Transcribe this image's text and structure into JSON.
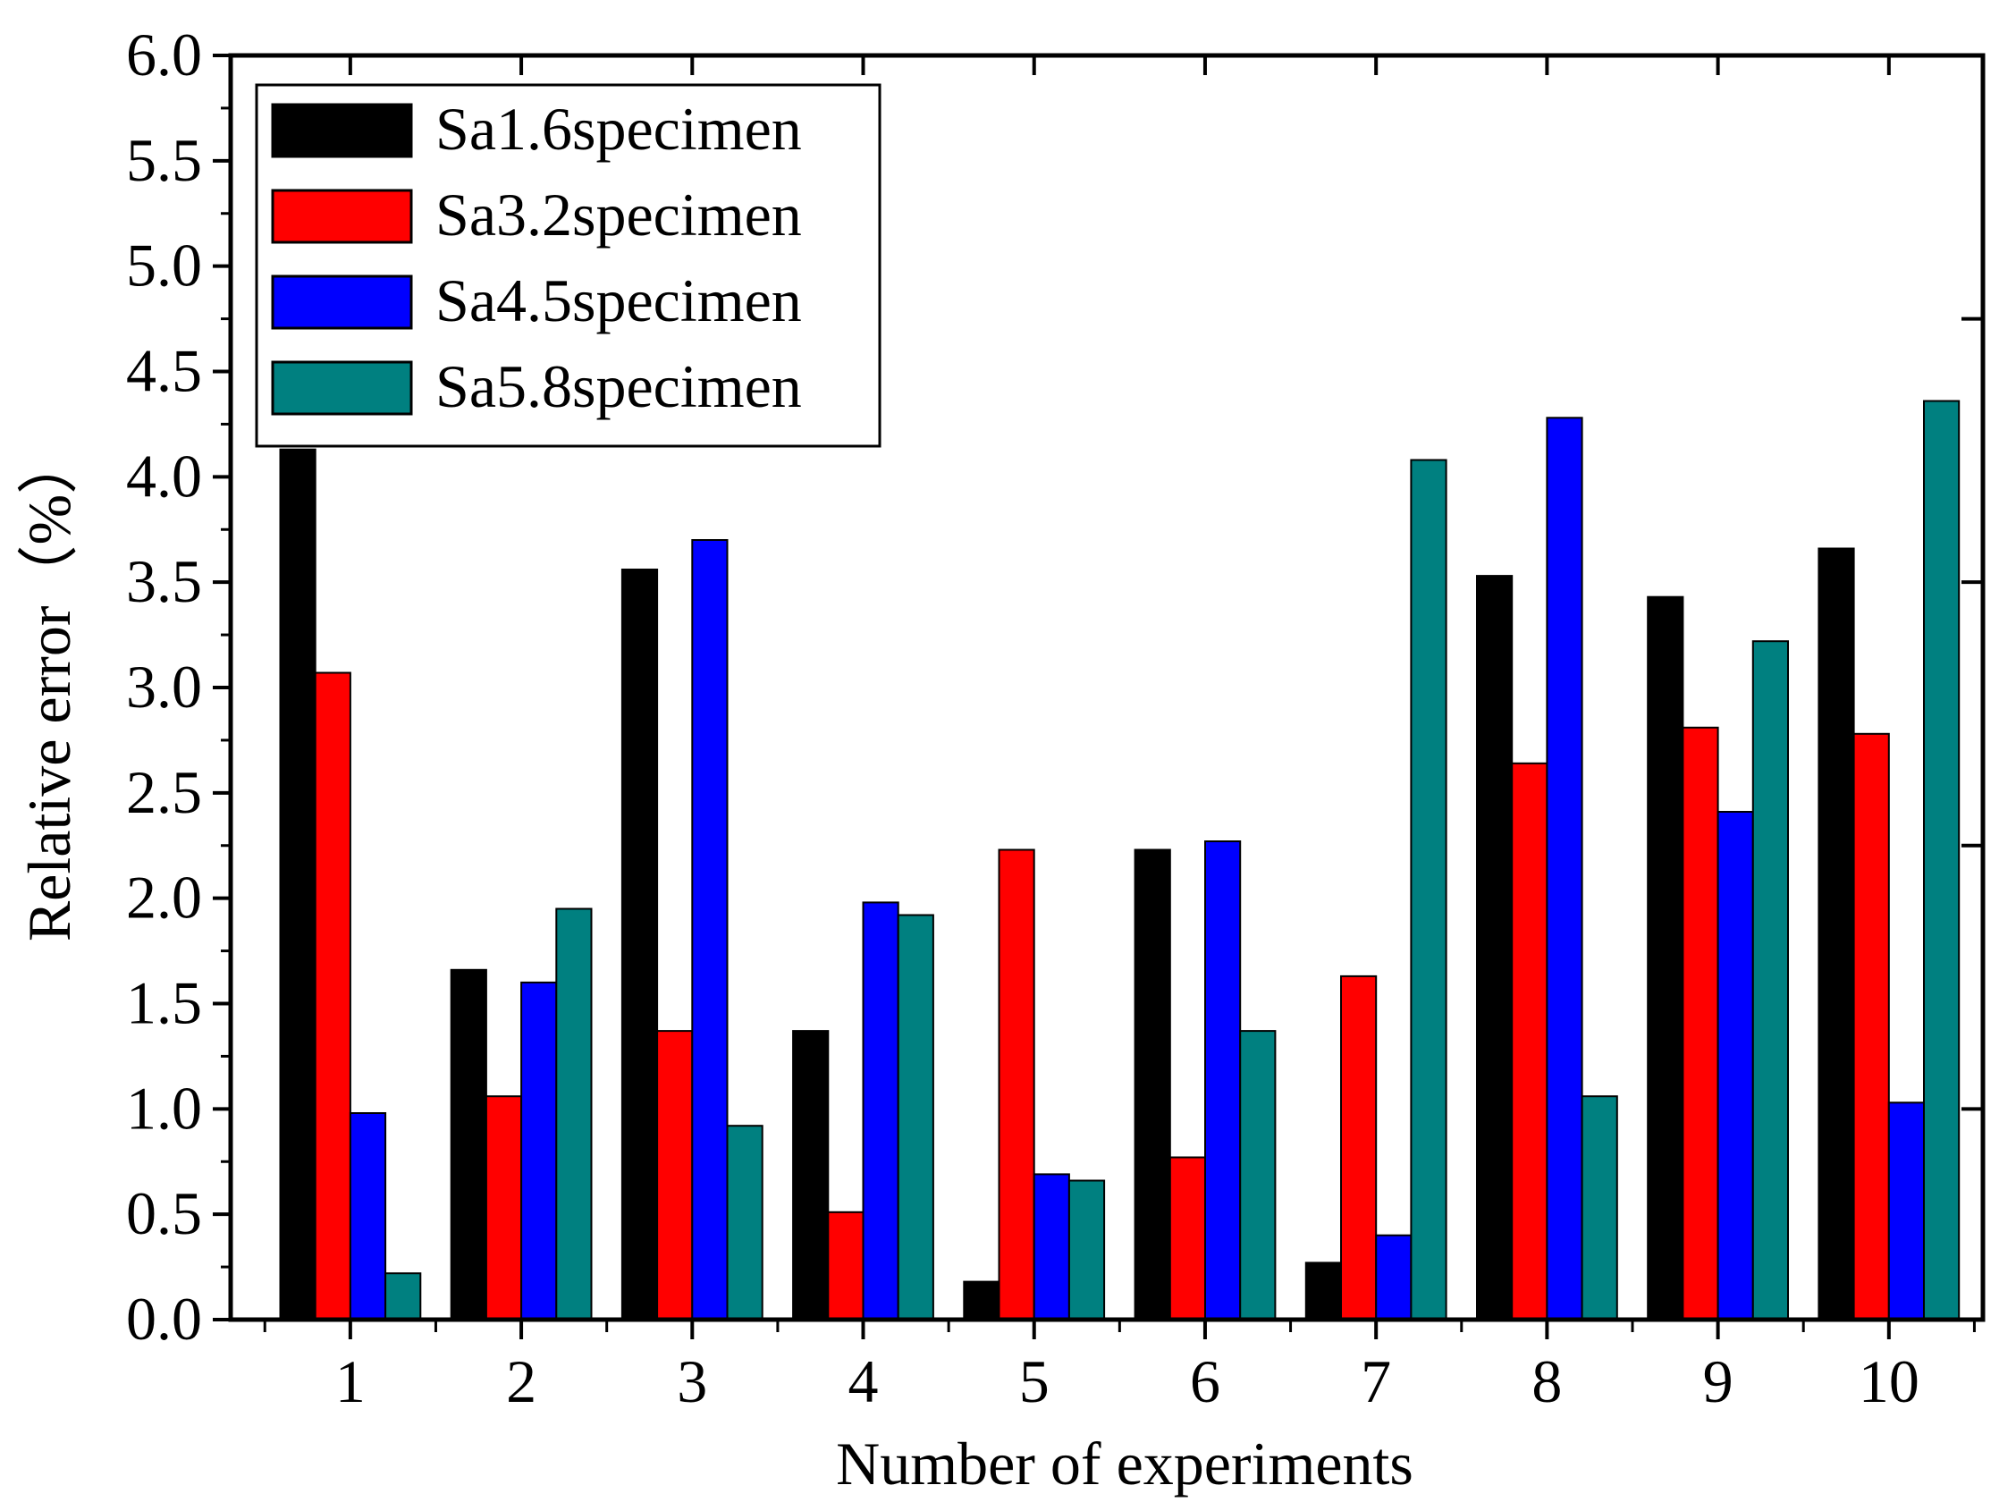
{
  "chart_data": {
    "type": "bar",
    "title": "",
    "xlabel": "Number of experiments",
    "ylabel": "Relative error（%）",
    "categories": [
      "1",
      "2",
      "3",
      "4",
      "5",
      "6",
      "7",
      "8",
      "9",
      "10"
    ],
    "ylim": [
      0,
      6.0
    ],
    "yticks": [
      "0.0",
      "0.5",
      "1.0",
      "1.5",
      "2.0",
      "2.5",
      "3.0",
      "3.5",
      "4.0",
      "4.5",
      "5.0",
      "5.5",
      "6.0"
    ],
    "grid": false,
    "legend_position": "top-left",
    "series": [
      {
        "name": "Sa1.6specimen",
        "color": "#000000",
        "values": [
          4.13,
          1.66,
          3.56,
          1.37,
          0.18,
          2.23,
          0.27,
          3.53,
          3.43,
          3.66
        ]
      },
      {
        "name": "Sa3.2specimen",
        "color": "#ff0000",
        "values": [
          3.07,
          1.06,
          1.37,
          0.51,
          2.23,
          0.77,
          1.63,
          2.64,
          2.81,
          2.78
        ]
      },
      {
        "name": "Sa4.5specimen",
        "color": "#0000ff",
        "values": [
          0.98,
          1.6,
          3.7,
          1.98,
          0.69,
          2.27,
          0.4,
          4.28,
          2.41,
          1.03
        ]
      },
      {
        "name": "Sa5.8specimen",
        "color": "#008080",
        "values": [
          0.22,
          1.95,
          0.92,
          1.92,
          0.66,
          1.37,
          4.08,
          1.06,
          3.22,
          4.36
        ]
      }
    ]
  }
}
